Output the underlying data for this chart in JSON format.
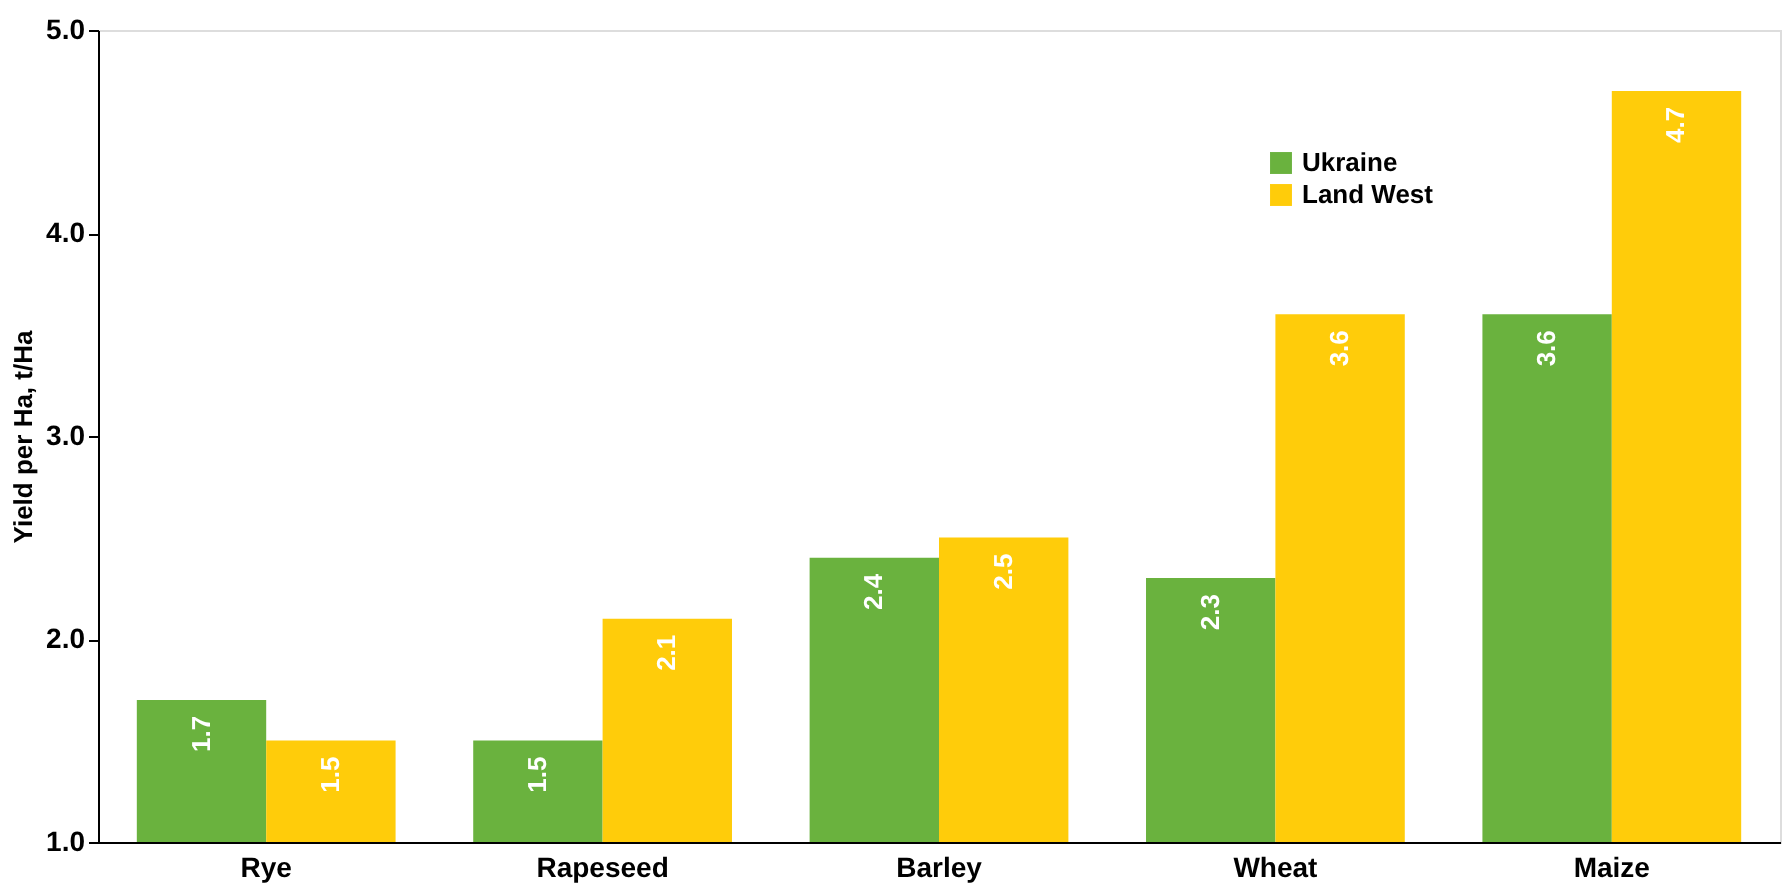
{
  "chart_data": {
    "type": "bar",
    "ylabel": "Yield per Ha, t/Ha",
    "categories": [
      "Rye",
      "Rapeseed",
      "Barley",
      "Wheat",
      "Maize"
    ],
    "series": [
      {
        "name": "Ukraine",
        "color": "#6ab23e",
        "values": [
          1.7,
          1.5,
          2.4,
          2.3,
          3.6
        ]
      },
      {
        "name": "Land West",
        "color": "#ffcc0a",
        "values": [
          1.5,
          2.1,
          2.5,
          3.6,
          4.7
        ]
      }
    ],
    "ylim": [
      1.0,
      5.0
    ],
    "yticks": [
      {
        "value": 1.0,
        "label": "1.0"
      },
      {
        "value": 2.0,
        "label": "2.0"
      },
      {
        "value": 3.0,
        "label": "3.0"
      },
      {
        "value": 4.0,
        "label": "4.0"
      },
      {
        "value": 5.0,
        "label": "5.0"
      }
    ],
    "data_labels": true,
    "grid": false,
    "legend": "top right"
  }
}
